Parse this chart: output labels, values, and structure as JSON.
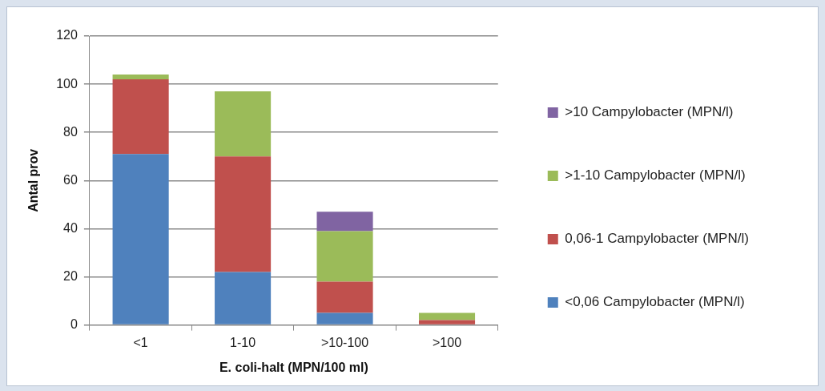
{
  "chart_data": {
    "type": "bar",
    "stacked": true,
    "xlabel": "E. coli-halt (MPN/100 ml)",
    "ylabel": "Antal prov",
    "categories": [
      "<1",
      "1-10",
      ">10-100",
      ">100"
    ],
    "ylim": [
      0,
      120
    ],
    "yticks": [
      0,
      20,
      40,
      60,
      80,
      100,
      120
    ],
    "grid": "y",
    "legend": "right",
    "series": [
      {
        "name": "<0,06 Campylobacter (MPN/l)",
        "color": "#4f81bd",
        "values": [
          71,
          22,
          5,
          0
        ]
      },
      {
        "name": "0,06-1 Campylobacter (MPN/l)",
        "color": "#c0504d",
        "values": [
          31,
          48,
          13,
          2
        ]
      },
      {
        "name": ">1-10 Campylobacter (MPN/l)",
        "color": "#9bbb59",
        "values": [
          2,
          27,
          21,
          3
        ]
      },
      {
        "name": ">10 Campylobacter (MPN/l)",
        "color": "#8064a2",
        "values": [
          0,
          0,
          8,
          0
        ]
      }
    ]
  }
}
